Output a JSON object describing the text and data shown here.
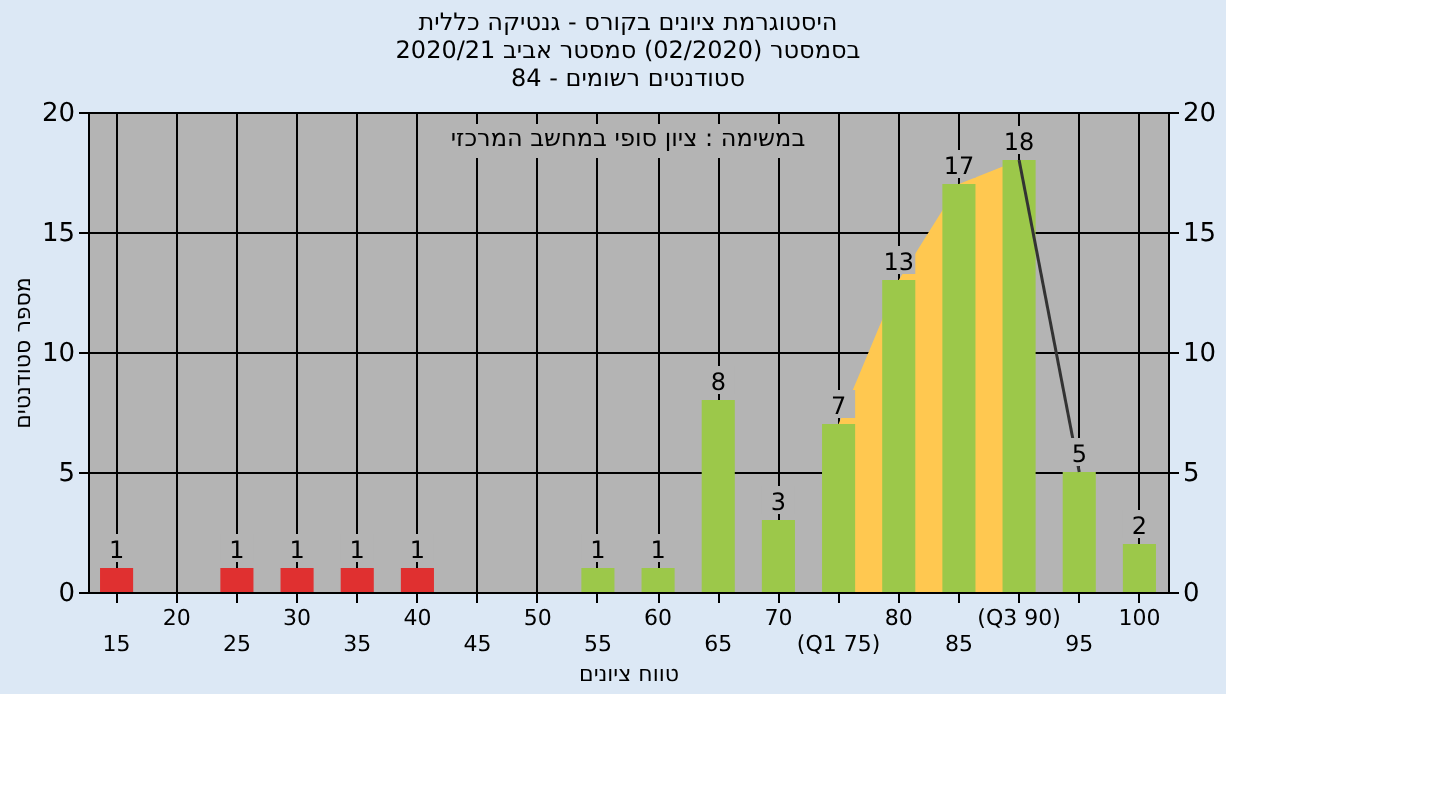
{
  "chart_data": {
    "type": "bar",
    "title": "היסטוגרמת ציונים בקורס - גנטיקה כללית\nבסמסטר  (02/2020)  סמסטר אביב 2020/21\nסטודנטים רשומים - 84",
    "xlabel": "טווח ציונים",
    "ylabel": "מספר סטודנטים",
    "annotations": [
      "במשימה : ציון סופי במחשב המרכזי"
    ],
    "categories": [
      "15",
      "20",
      "25",
      "30",
      "35",
      "40",
      "45",
      "50",
      "55",
      "60",
      "65",
      "70",
      "(Q1 75)",
      "80",
      "85",
      "(Q3 90)",
      "95",
      "100"
    ],
    "series": [
      {
        "type": "area",
        "color": "#ffc850",
        "values": [
          null,
          null,
          null,
          null,
          null,
          null,
          null,
          null,
          null,
          null,
          null,
          null,
          7,
          13,
          17,
          18,
          null,
          null
        ]
      },
      {
        "type": "line",
        "color": "#333333",
        "values": [
          null,
          null,
          null,
          null,
          null,
          null,
          null,
          null,
          null,
          null,
          null,
          null,
          null,
          null,
          null,
          18,
          5,
          null
        ]
      },
      {
        "colors": [
          "#e03030",
          "#e03030",
          "#e03030",
          "#e03030",
          "#e03030",
          "#e03030",
          "#e03030",
          "#e03030",
          "#9cc84a",
          "#9cc84a",
          "#9cc84a",
          "#9cc84a",
          "#9cc84a",
          "#9cc84a",
          "#9cc84a",
          "#9cc84a",
          "#9cc84a",
          "#9cc84a"
        ],
        "values": [
          1,
          0,
          1,
          1,
          1,
          1,
          0,
          0,
          1,
          1,
          8,
          3,
          7,
          13,
          17,
          18,
          5,
          2
        ],
        "value_labels": [
          "1",
          null,
          "1",
          "1",
          "1",
          "1",
          null,
          null,
          "1",
          "1",
          "8",
          "3",
          "7",
          "13",
          "17",
          "18",
          "5",
          "2"
        ]
      }
    ],
    "ylim": [
      0,
      20
    ],
    "yticks": [
      0,
      5,
      10,
      15,
      20
    ],
    "y2lim": [
      0,
      20
    ],
    "y2ticks": [
      0,
      5,
      10,
      15,
      20
    ],
    "grid": true
  }
}
